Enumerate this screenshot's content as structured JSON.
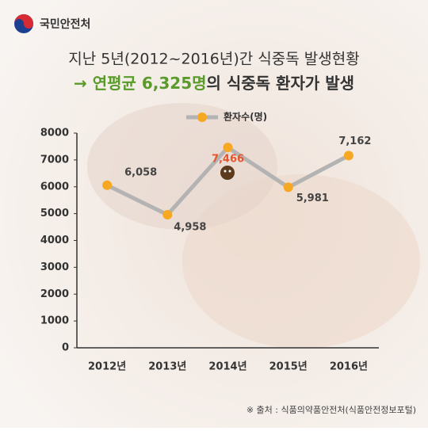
{
  "logo": "국민안전처",
  "chart_data": {
    "type": "line",
    "title": "지난 5년(2012~2016년)간 식중독 발생현황",
    "subtitle": [
      "→ 연평균 6,325명",
      "의 식중독 환자가 발생"
    ],
    "categories": [
      "2012년",
      "2013년",
      "2014년",
      "2015년",
      "2016년"
    ],
    "series": [
      {
        "name": "환자수(명)",
        "color": "#b3b3b3",
        "marker_color": "#f7a823",
        "values": [
          6058,
          4958,
          7466,
          5981,
          7162
        ],
        "value_labels": [
          "6,058",
          "4,958",
          "7,466",
          "5,981",
          "7,162"
        ],
        "value_label_colors": [
          "#444444",
          "#444444",
          "#e4572e",
          "#444444",
          "#444444"
        ]
      }
    ],
    "ylim": [
      0,
      8000
    ],
    "yticks": [
      0,
      1000,
      2000,
      3000,
      4000,
      5000,
      6000,
      7000,
      8000
    ],
    "grid": false,
    "source": "※ 출처 : 식품의약품안전처(식품안전정보포털)"
  }
}
